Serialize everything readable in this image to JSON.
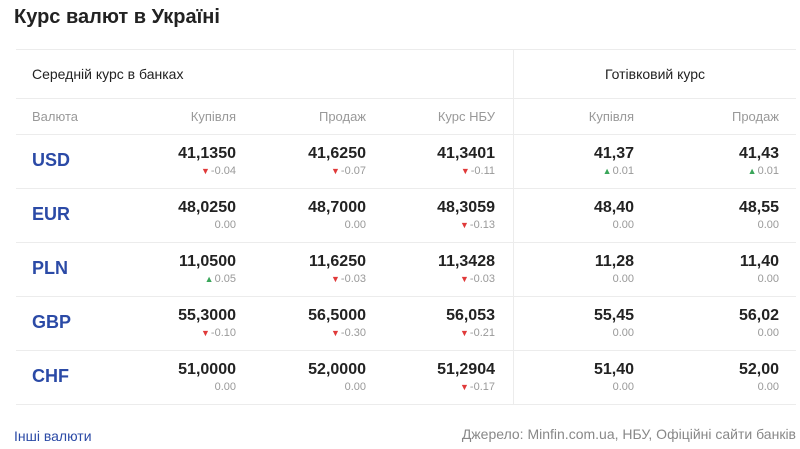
{
  "title": "Курс валют в Україні",
  "groups": {
    "bank_avg": "Середній курс в банках",
    "cash": "Готівковий курс"
  },
  "headers": {
    "currency": "Валюта",
    "buy": "Купівля",
    "sell": "Продаж",
    "nbu": "Курс НБУ",
    "cash_buy": "Купівля",
    "cash_sell": "Продаж"
  },
  "rows": [
    {
      "code": "USD",
      "buy": {
        "value": "41,1350",
        "change": "-0.04",
        "dir": "down"
      },
      "sell": {
        "value": "41,6250",
        "change": "-0.07",
        "dir": "down"
      },
      "nbu": {
        "value": "41,3401",
        "change": "-0.11",
        "dir": "down"
      },
      "cash_buy": {
        "value": "41,37",
        "change": "0.01",
        "dir": "up"
      },
      "cash_sell": {
        "value": "41,43",
        "change": "0.01",
        "dir": "up"
      }
    },
    {
      "code": "EUR",
      "buy": {
        "value": "48,0250",
        "change": "0.00",
        "dir": "none"
      },
      "sell": {
        "value": "48,7000",
        "change": "0.00",
        "dir": "none"
      },
      "nbu": {
        "value": "48,3059",
        "change": "-0.13",
        "dir": "down"
      },
      "cash_buy": {
        "value": "48,40",
        "change": "0.00",
        "dir": "none"
      },
      "cash_sell": {
        "value": "48,55",
        "change": "0.00",
        "dir": "none"
      }
    },
    {
      "code": "PLN",
      "buy": {
        "value": "11,0500",
        "change": "0.05",
        "dir": "up"
      },
      "sell": {
        "value": "11,6250",
        "change": "-0.03",
        "dir": "down"
      },
      "nbu": {
        "value": "11,3428",
        "change": "-0.03",
        "dir": "down"
      },
      "cash_buy": {
        "value": "11,28",
        "change": "0.00",
        "dir": "none"
      },
      "cash_sell": {
        "value": "11,40",
        "change": "0.00",
        "dir": "none"
      }
    },
    {
      "code": "GBP",
      "buy": {
        "value": "55,3000",
        "change": "-0.10",
        "dir": "down"
      },
      "sell": {
        "value": "56,5000",
        "change": "-0.30",
        "dir": "down"
      },
      "nbu": {
        "value": "56,053",
        "change": "-0.21",
        "dir": "down"
      },
      "cash_buy": {
        "value": "55,45",
        "change": "0.00",
        "dir": "none"
      },
      "cash_sell": {
        "value": "56,02",
        "change": "0.00",
        "dir": "none"
      }
    },
    {
      "code": "CHF",
      "buy": {
        "value": "51,0000",
        "change": "0.00",
        "dir": "none"
      },
      "sell": {
        "value": "52,0000",
        "change": "0.00",
        "dir": "none"
      },
      "nbu": {
        "value": "51,2904",
        "change": "-0.17",
        "dir": "down"
      },
      "cash_buy": {
        "value": "51,40",
        "change": "0.00",
        "dir": "none"
      },
      "cash_sell": {
        "value": "52,00",
        "change": "0.00",
        "dir": "none"
      }
    }
  ],
  "footer": {
    "other_link": "Інші валюти",
    "source": "Джерело: Minfin.com.ua, НБУ, Офіційні сайти банків"
  },
  "colors": {
    "link": "#2b4aa6",
    "down": "#e03a3a",
    "up": "#3aa65a"
  }
}
